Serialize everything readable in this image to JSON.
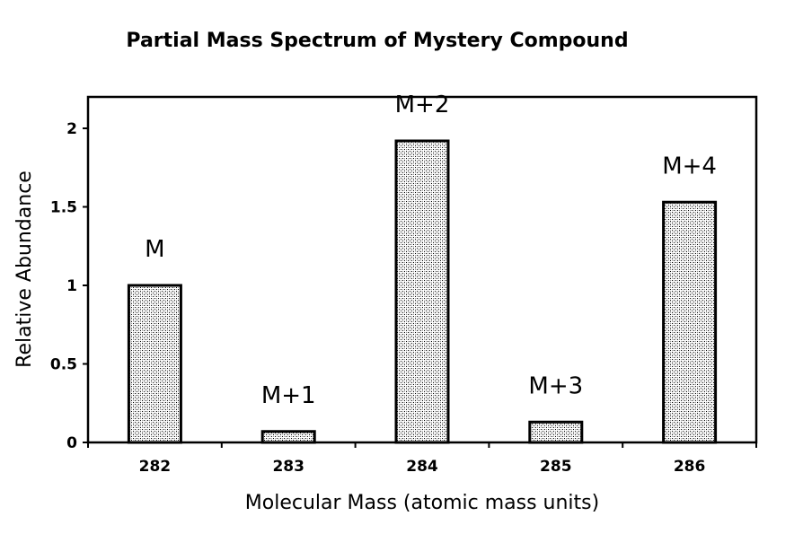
{
  "chart_data": {
    "type": "bar",
    "title": "Partial Mass Spectrum of Mystery Compound",
    "xlabel": "Molecular Mass (atomic mass units)",
    "ylabel": "Relative Abundance",
    "categories": [
      "282",
      "283",
      "284",
      "285",
      "286"
    ],
    "values": [
      1.0,
      0.07,
      1.92,
      0.13,
      1.53
    ],
    "bar_labels": [
      "M",
      "M+1",
      "M+2",
      "M+3",
      "M+4"
    ],
    "yticks": [
      "0",
      "0.5",
      "1",
      "1.5",
      "2"
    ],
    "ytick_values": [
      0,
      0.5,
      1,
      1.5,
      2
    ],
    "ylim": [
      0,
      2.2
    ],
    "grid": false,
    "bar_fill": "#d8d8d8",
    "bar_edge": "#000000"
  }
}
